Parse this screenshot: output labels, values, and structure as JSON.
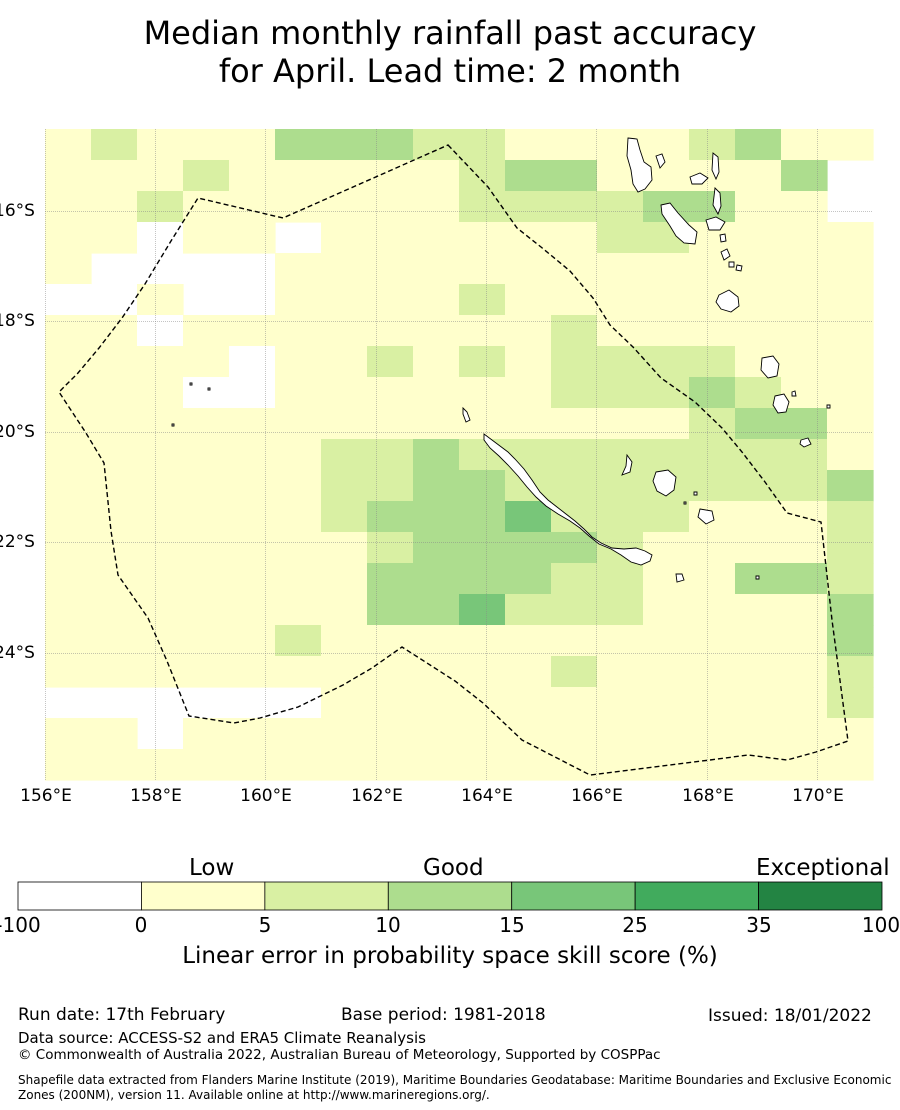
{
  "title": {
    "line1": "Median monthly rainfall past accuracy",
    "line2": "for April. Lead time: 2 month"
  },
  "map": {
    "lon_labels": [
      "156°E",
      "158°E",
      "160°E",
      "162°E",
      "164°E",
      "166°E",
      "168°E",
      "170°E"
    ],
    "lat_labels": [
      "16°S",
      "18°S",
      "20°S",
      "22°S",
      "24°S"
    ],
    "grid_columns": 18,
    "grid_rows": 21,
    "skill_grid": [
      "121113332211112311",
      "111211111233111131",
      "112111111222233111",
      "110111111111221111",
      "101101111111111111",
      "001001111211111111",
      "110111111112111111",
      "111101121212222111",
      "111001111112223211",
      "111111111111112331",
      "111111223222222221",
      "111111223322222223",
      "111111233342221112",
      "111111123333211112",
      "111111133332211332",
      "111111133422211113",
      "111112111111111113",
      "111111111112111112",
      "101111111111111112",
      "110111111111111111",
      "111111111111111111"
    ],
    "grid_mask": [
      "111111111111111111",
      "111111111111111110",
      "111111111111111110",
      "111110111111111111",
      "100001111111111111",
      "101001111111111111",
      "111111111111111111",
      "111111111111111111",
      "111111111111111111",
      "111111111111111111",
      "111111111111111111",
      "111111111111111111",
      "111111111111111111",
      "111111111111111111",
      "111111111111111111",
      "111111111111111111",
      "111111111111111111",
      "111111111111111111",
      "000000111111111111",
      "110111111111111111",
      "111111111111111111"
    ]
  },
  "colorbar": {
    "category_labels": [
      "Low",
      "Good",
      "Exceptional"
    ],
    "tick_labels": [
      "-100",
      "0",
      "5",
      "10",
      "15",
      "25",
      "35",
      "100"
    ],
    "colors": [
      "#ffffff",
      "#ffffcc",
      "#d9f0a3",
      "#addd8e",
      "#78c679",
      "#41ab5d",
      "#238443"
    ],
    "title": "Linear error in probability space skill score (%)"
  },
  "footer": {
    "run_date": "Run date: 17th February",
    "base_period": "Base period: 1981-2018",
    "issued": "Issued: 18/01/2022",
    "data_source": "Data source: ACCESS-S2 and ERA5 Climate Reanalysis",
    "copyright": "© Commonwealth of Australia 2022, Australian Bureau of Meteorology, Supported by COSPPac",
    "shapefile": "Shapefile data extracted from Flanders Marine Institute (2019), Maritime Boundaries Geodatabase: Maritime Boundaries and Exclusive Economic Zones (200NM), version 11. Available online at http://www.marineregions.org/."
  }
}
